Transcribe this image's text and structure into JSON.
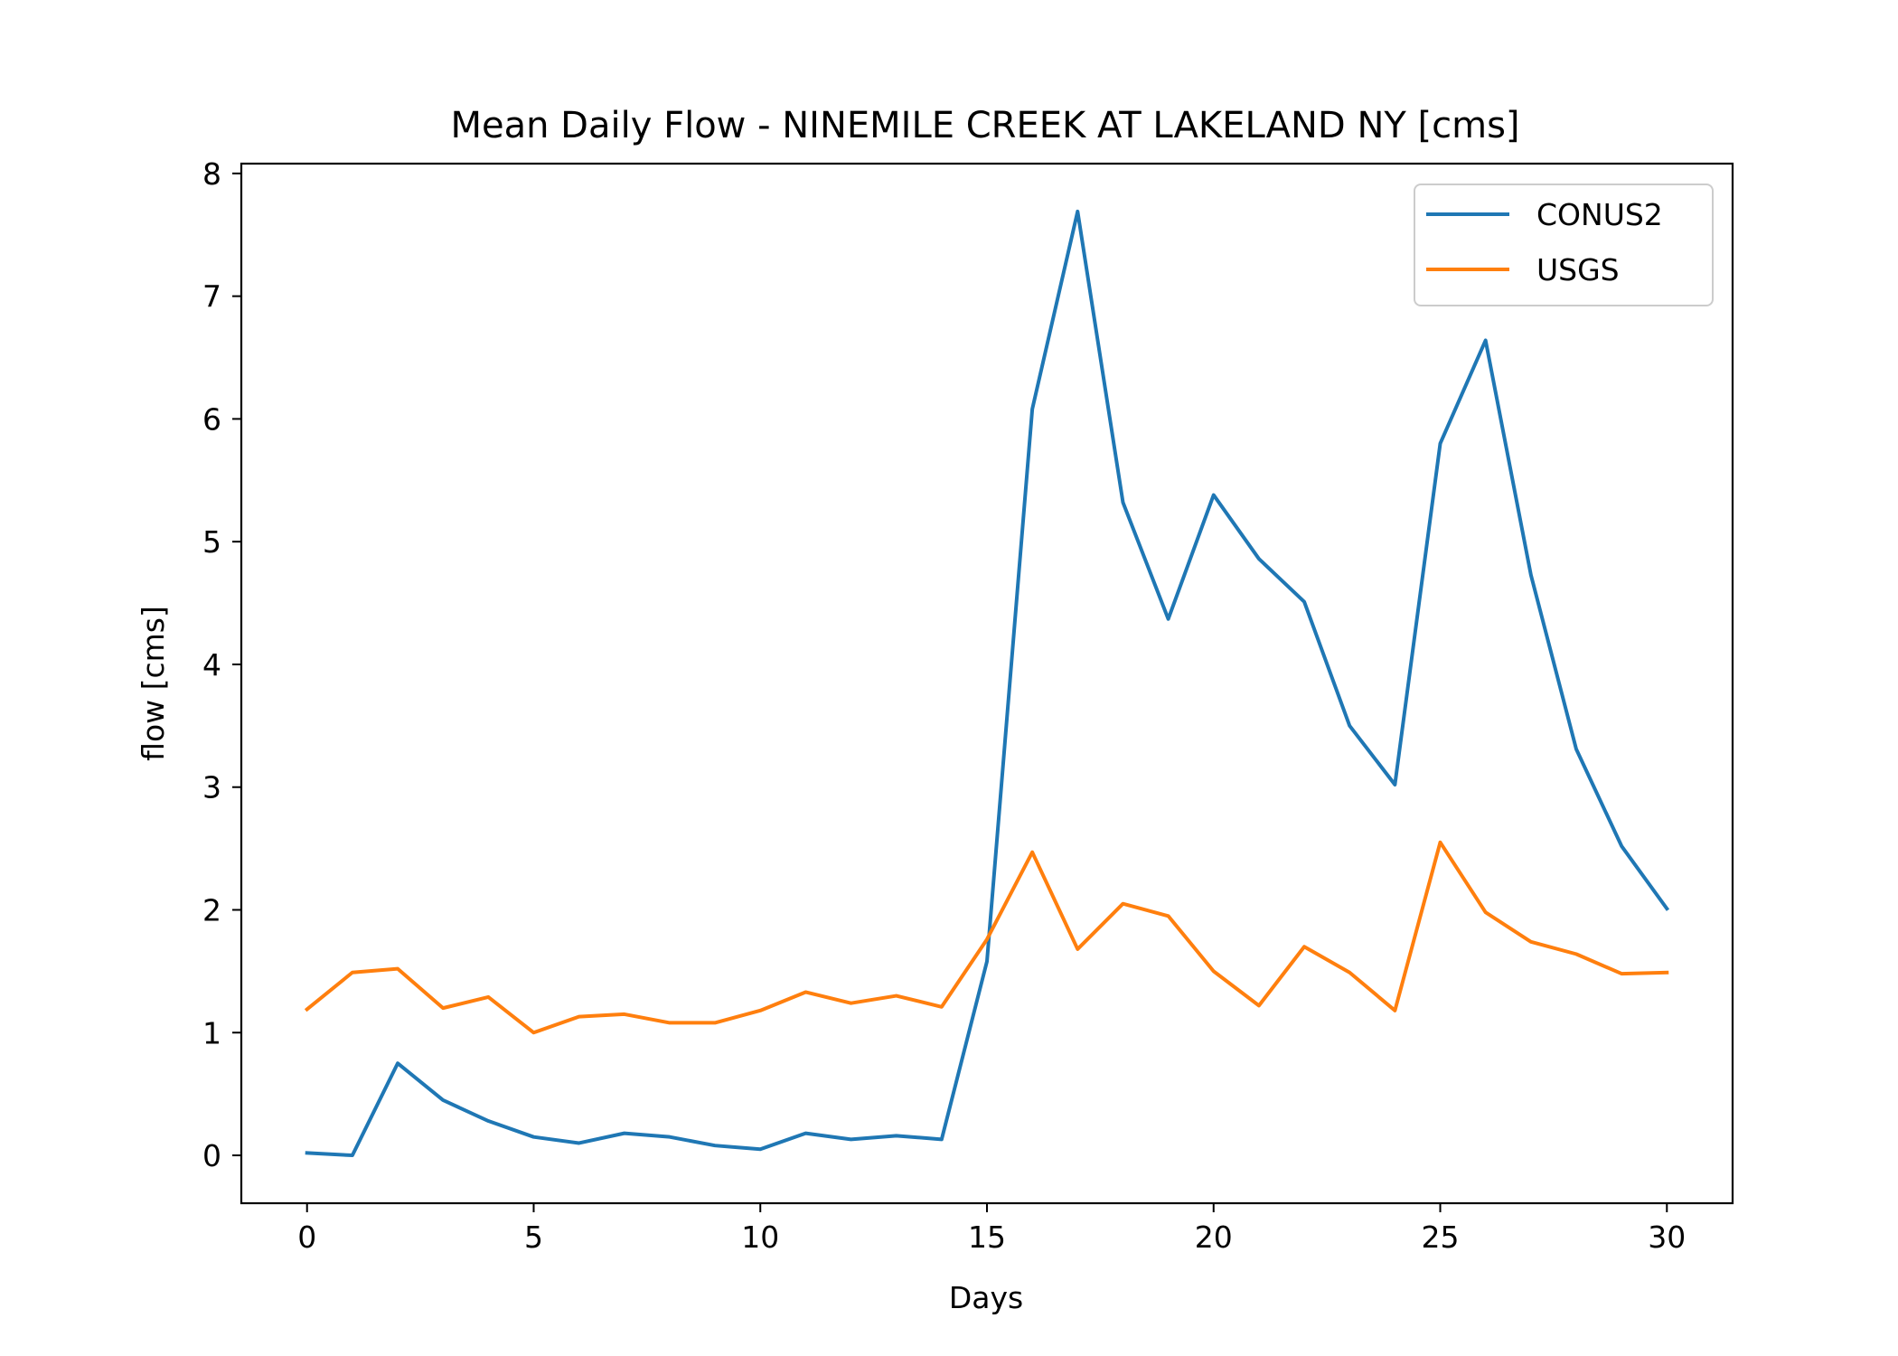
{
  "chart_data": {
    "type": "line",
    "title": "Mean Daily Flow - NINEMILE CREEK AT LAKELAND NY [cms]",
    "xlabel": "Days",
    "ylabel": "flow [cms]",
    "xlim": [
      -1.45,
      31.45
    ],
    "ylim": [
      -0.39,
      8.08
    ],
    "xticks": [
      0,
      5,
      10,
      15,
      20,
      25,
      30
    ],
    "yticks": [
      0,
      1,
      2,
      3,
      4,
      5,
      6,
      7,
      8
    ],
    "grid": false,
    "legend": "top-right",
    "x": [
      0,
      1,
      2,
      3,
      4,
      5,
      6,
      7,
      8,
      9,
      10,
      11,
      12,
      13,
      14,
      15,
      16,
      17,
      18,
      19,
      20,
      21,
      22,
      23,
      24,
      25,
      26,
      27,
      28,
      29,
      30
    ],
    "series": [
      {
        "name": "CONUS2",
        "color": "#1f77b4",
        "values": [
          0.02,
          0.0,
          0.75,
          0.45,
          0.28,
          0.15,
          0.1,
          0.18,
          0.15,
          0.08,
          0.05,
          0.18,
          0.13,
          0.16,
          0.13,
          1.58,
          6.08,
          7.69,
          5.32,
          4.37,
          5.38,
          4.86,
          4.51,
          3.5,
          3.02,
          5.8,
          6.64,
          4.73,
          3.31,
          2.52,
          2.01
        ]
      },
      {
        "name": "USGS",
        "color": "#ff7f0e",
        "values": [
          1.19,
          1.49,
          1.52,
          1.2,
          1.29,
          1.0,
          1.13,
          1.15,
          1.08,
          1.08,
          1.18,
          1.33,
          1.24,
          1.3,
          1.21,
          1.76,
          2.47,
          1.68,
          2.05,
          1.95,
          1.5,
          1.22,
          1.7,
          1.49,
          1.18,
          2.55,
          1.98,
          1.74,
          1.64,
          1.48,
          1.49
        ]
      }
    ]
  }
}
